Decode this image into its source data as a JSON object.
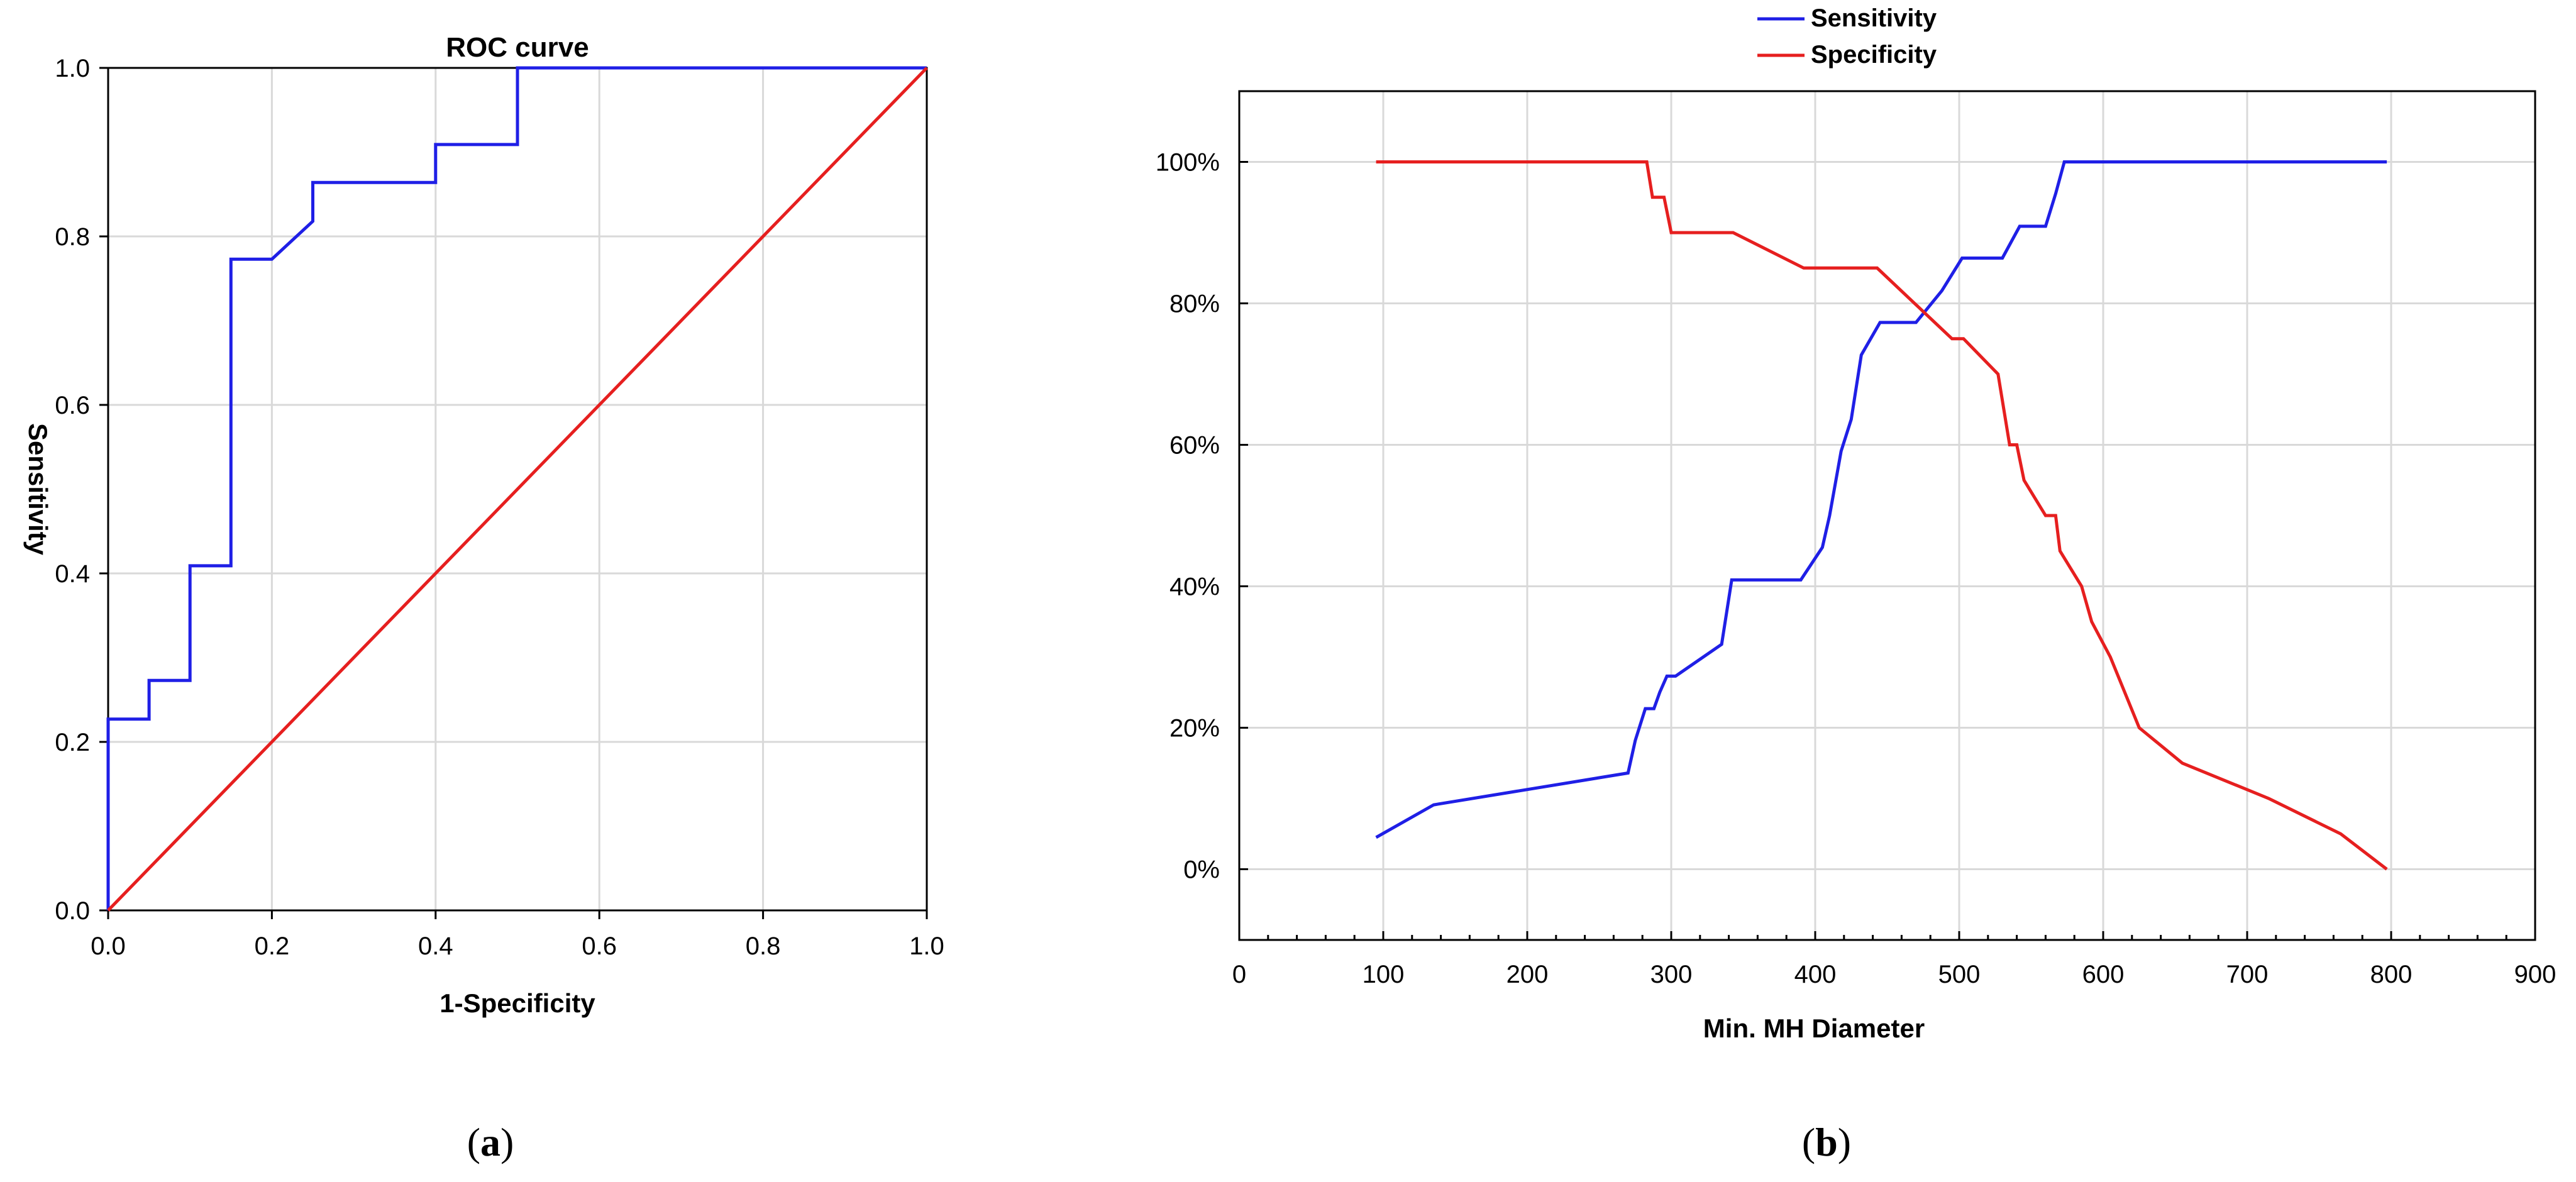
{
  "figure": {
    "panels": [
      {
        "open": "(",
        "letter": "a",
        "close": ")"
      },
      {
        "open": "(",
        "letter": "b",
        "close": ")"
      }
    ]
  },
  "colors": {
    "blue": "#1f1fe6",
    "red": "#e61f1f",
    "grid": "#d9d9d9"
  },
  "chart_data": [
    {
      "type": "line",
      "title": "ROC curve",
      "xlabel": "1-Specificity",
      "ylabel": "Sensitivity",
      "xlim": [
        0,
        1
      ],
      "ylim": [
        0,
        1
      ],
      "xticks": [
        "0.0",
        "0.2",
        "0.4",
        "0.6",
        "0.8",
        "1.0"
      ],
      "xtick_values": [
        0,
        0.2,
        0.4,
        0.6,
        0.8,
        1.0
      ],
      "yticks": [
        "0.0",
        "0.2",
        "0.4",
        "0.6",
        "0.8",
        "1.0"
      ],
      "ytick_values": [
        0,
        0.2,
        0.4,
        0.6,
        0.8,
        1.0
      ],
      "grid": true,
      "series": [
        {
          "color": "#1f1fe6",
          "x": [
            0,
            0,
            0.05,
            0.05,
            0.1,
            0.1,
            0.15,
            0.15,
            0.2,
            0.25,
            0.25,
            0.4,
            0.4,
            0.5,
            0.5,
            1.0
          ],
          "y": [
            0,
            0.227,
            0.227,
            0.273,
            0.273,
            0.409,
            0.409,
            0.773,
            0.773,
            0.818,
            0.864,
            0.864,
            0.909,
            0.909,
            1.0,
            1.0
          ]
        },
        {
          "color": "#e61f1f",
          "x": [
            0,
            1
          ],
          "y": [
            0,
            1
          ]
        }
      ]
    },
    {
      "type": "line",
      "title": "",
      "xlabel": "Min. MH Diameter",
      "ylabel": "",
      "xlim": [
        0,
        900
      ],
      "ylim": [
        -10,
        110
      ],
      "xticks": [
        "0",
        "100",
        "200",
        "300",
        "400",
        "500",
        "600",
        "700",
        "800",
        "900"
      ],
      "xtick_values": [
        0,
        100,
        200,
        300,
        400,
        500,
        600,
        700,
        800,
        900
      ],
      "yticks": [
        "0%",
        "20%",
        "40%",
        "60%",
        "80%",
        "100%"
      ],
      "ytick_values": [
        0,
        20,
        40,
        60,
        80,
        100
      ],
      "grid": true,
      "legend": "top-center",
      "series": [
        {
          "name": "Sensitivity",
          "color": "#1f1fe6",
          "x": [
            95,
            135,
            270,
            275,
            282,
            288,
            292,
            297,
            303,
            335,
            342,
            390,
            405,
            410,
            418,
            425,
            432,
            445,
            470,
            488,
            502,
            530,
            542,
            560,
            567,
            573,
            797
          ],
          "y": [
            4.5,
            9.1,
            13.6,
            18.2,
            22.7,
            22.7,
            25,
            27.3,
            27.3,
            31.8,
            40.9,
            40.9,
            45.5,
            50,
            59.1,
            63.6,
            72.7,
            77.3,
            77.3,
            81.8,
            86.4,
            86.4,
            90.9,
            90.9,
            95.5,
            100,
            100
          ]
        },
        {
          "name": "Specificity",
          "color": "#e61f1f",
          "x": [
            95,
            283,
            287,
            295,
            300,
            343,
            392,
            443,
            495,
            503,
            527,
            531,
            535,
            540,
            545,
            560,
            567,
            570,
            585,
            592,
            605,
            625,
            655,
            715,
            765,
            797
          ],
          "y": [
            100,
            100,
            95,
            95,
            90,
            90,
            85,
            85,
            75,
            75,
            70,
            65,
            60,
            60,
            55,
            50,
            50,
            45,
            40,
            35,
            30,
            20,
            15,
            10,
            5,
            0
          ]
        }
      ]
    }
  ]
}
